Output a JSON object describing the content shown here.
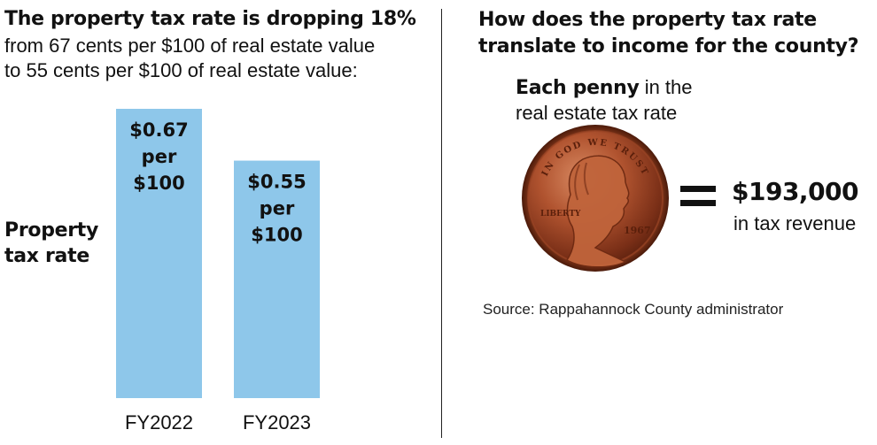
{
  "left": {
    "title": "The property tax rate is dropping 18%",
    "subtitle_line1": "from 67 cents per $100 of real estate value",
    "subtitle_line2": "to 55 cents per $100 of real estate value:"
  },
  "right": {
    "title_line1": "How does the property tax rate",
    "title_line2": "translate to income for the county?",
    "penny_bold": "Each penny",
    "penny_rest": " in the",
    "penny_line2": "real estate tax rate",
    "coin_year": "1967",
    "coin_liberty": "LIBERTY",
    "coin_motto": "IN GOD WE TRUST",
    "value": "$193,000",
    "value_sub": "in tax revenue",
    "source": "Source: Rappahannock County administrator"
  },
  "chart_data": {
    "type": "bar",
    "ylabel_line1": "Property",
    "ylabel_line2": "tax rate",
    "categories": [
      "FY2022",
      "FY2023"
    ],
    "values": [
      0.67,
      0.55
    ],
    "data_labels": [
      [
        "$0.67",
        "per",
        "$100"
      ],
      [
        "$0.55",
        "per",
        "$100"
      ]
    ],
    "bar_color": "#8ec7ea",
    "ylim": [
      0,
      0.67
    ]
  }
}
